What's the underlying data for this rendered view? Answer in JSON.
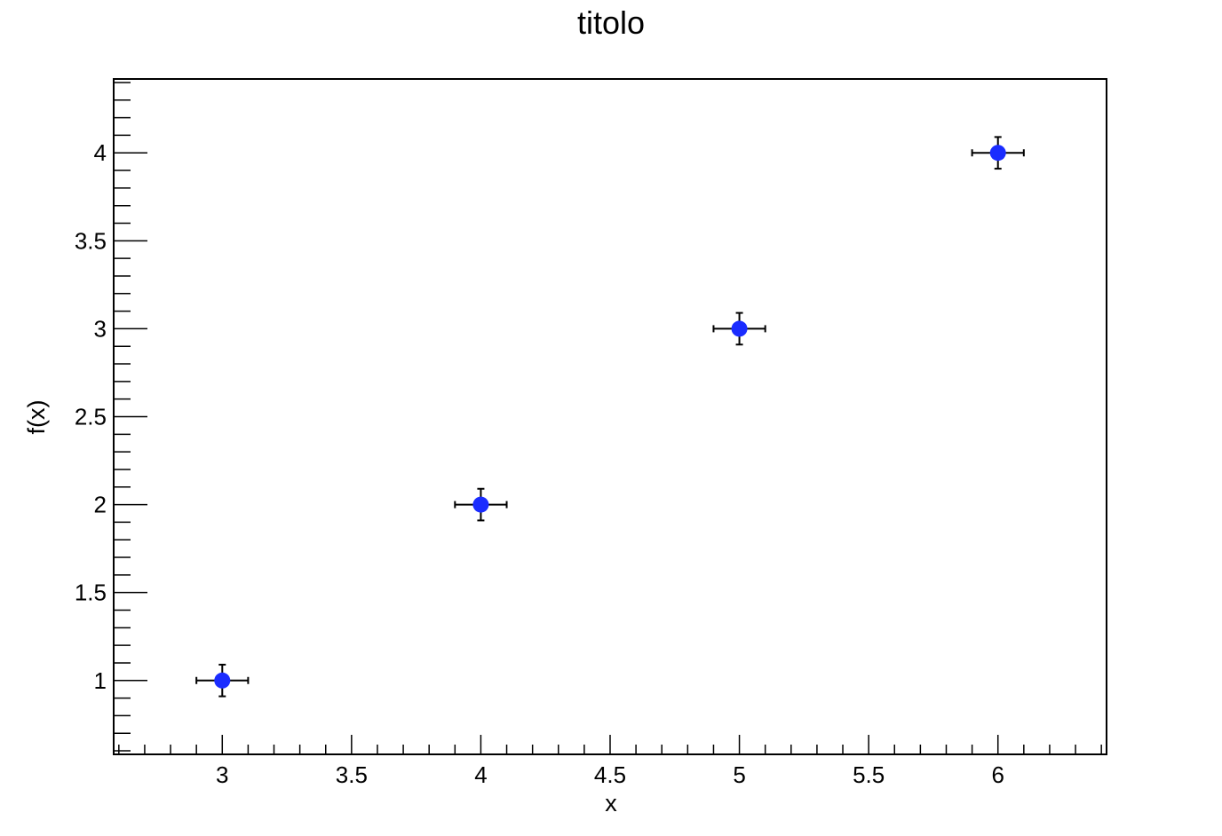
{
  "chart_data": {
    "type": "scatter",
    "title": "titolo",
    "xlabel": "x",
    "ylabel": "f(x)",
    "xlim": [
      2.58,
      6.42
    ],
    "ylim": [
      0.58,
      4.42
    ],
    "x_ticks": [
      3,
      3.5,
      4,
      4.5,
      5,
      5.5,
      6
    ],
    "x_tick_labels": [
      "3",
      "3.5",
      "4",
      "4.5",
      "5",
      "5.5",
      "6"
    ],
    "y_ticks": [
      1,
      1.5,
      2,
      2.5,
      3,
      3.5,
      4
    ],
    "y_tick_labels": [
      "1",
      "1.5",
      "2",
      "2.5",
      "3",
      "3.5",
      "4"
    ],
    "grid": false,
    "legend": "none",
    "series": [
      {
        "x": [
          3,
          4,
          5,
          6
        ],
        "y": [
          1,
          2,
          3,
          4
        ],
        "x_err": [
          0.1,
          0.1,
          0.1,
          0.1
        ],
        "y_err": [
          0.09,
          0.09,
          0.09,
          0.09
        ],
        "marker_color": "#1a2cff",
        "errorbar_color": "#000000"
      }
    ]
  }
}
